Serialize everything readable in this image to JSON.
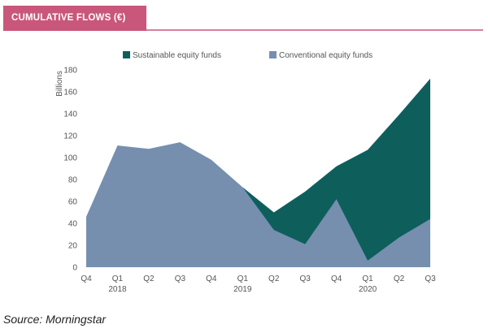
{
  "header": {
    "title": "CUMULATIVE FLOWS (€)"
  },
  "source": "Source: Morningstar",
  "colors": {
    "sustainable": "#0e5f5c",
    "conventional": "#768faf",
    "header_bg": "#c9577b",
    "header_rule": "#d7819a",
    "text": "#555555"
  },
  "chart_data": {
    "type": "area",
    "title": "CUMULATIVE FLOWS (€)",
    "ylabel": "Billions",
    "xlabel": "",
    "ylim": [
      0,
      180
    ],
    "yticks": [
      0,
      20,
      40,
      60,
      80,
      100,
      120,
      140,
      160,
      180
    ],
    "grid": false,
    "legend_position": "top",
    "categories": [
      "Q4",
      "Q1",
      "Q2",
      "Q3",
      "Q4",
      "Q1",
      "Q2",
      "Q3",
      "Q4",
      "Q1",
      "Q2",
      "Q3"
    ],
    "year_labels": [
      {
        "index": 1,
        "label": "2018"
      },
      {
        "index": 5,
        "label": "2019"
      },
      {
        "index": 9,
        "label": "2020"
      }
    ],
    "series": [
      {
        "name": "Sustainable equity funds",
        "values": [
          null,
          null,
          null,
          null,
          null,
          null,
          50,
          69,
          92,
          107,
          139,
          172
        ]
      },
      {
        "name": "Conventional equity funds",
        "values": [
          46,
          111,
          108,
          114,
          98,
          73,
          34,
          21,
          62,
          6,
          27,
          44
        ]
      }
    ]
  }
}
